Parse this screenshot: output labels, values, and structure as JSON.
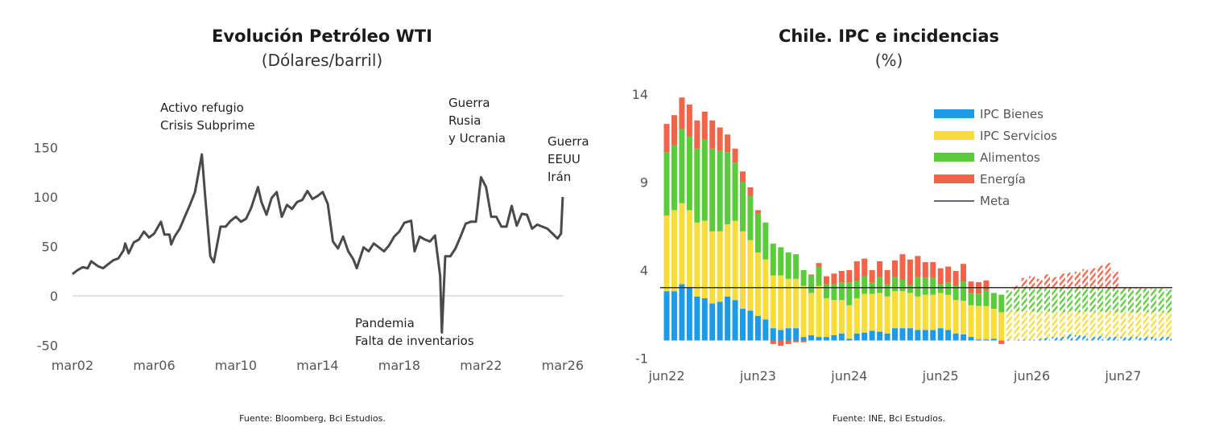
{
  "chart_data": [
    {
      "type": "line",
      "title": "Evolución Petróleo WTI",
      "subtitle": "(Dólares/barril)",
      "source": "Fuente: Bloomberg, Bci Estudios.",
      "ylim": [
        -50,
        150
      ],
      "yticks": [
        "150",
        "100",
        "50",
        "0",
        "-50"
      ],
      "ytick_values": [
        150,
        100,
        50,
        0,
        -50
      ],
      "xticks": [
        "mar02",
        "mar06",
        "mar10",
        "mar14",
        "mar18",
        "mar22",
        "mar26"
      ],
      "xtick_values": [
        "2002-03",
        "2006-03",
        "2010-03",
        "2014-03",
        "2018-03",
        "2022-03",
        "2026-03"
      ],
      "line_color": "#4a4a4a",
      "annotations": [
        {
          "lines": [
            "Activo refugio",
            "Crisis Subprime"
          ]
        },
        {
          "lines": [
            "Guerra",
            "Rusia",
            "y Ucrania"
          ]
        },
        {
          "lines": [
            "Guerra",
            "EEUU",
            "Irán"
          ]
        },
        {
          "lines": [
            "Pandemia",
            "Falta de inventarios"
          ]
        }
      ],
      "x": [
        "2002-03",
        "2002-06",
        "2002-09",
        "2002-12",
        "2003-02",
        "2003-06",
        "2003-09",
        "2003-12",
        "2004-03",
        "2004-06",
        "2004-09",
        "2004-10",
        "2004-12",
        "2005-03",
        "2005-06",
        "2005-09",
        "2005-12",
        "2006-03",
        "2006-07",
        "2006-09",
        "2006-12",
        "2007-01",
        "2007-03",
        "2007-06",
        "2007-09",
        "2007-12",
        "2008-03",
        "2008-07",
        "2008-09",
        "2008-12",
        "2009-02",
        "2009-06",
        "2009-09",
        "2009-12",
        "2010-03",
        "2010-06",
        "2010-09",
        "2010-12",
        "2011-04",
        "2011-06",
        "2011-09",
        "2011-12",
        "2012-03",
        "2012-06",
        "2012-09",
        "2012-12",
        "2013-03",
        "2013-06",
        "2013-09",
        "2013-12",
        "2014-03",
        "2014-06",
        "2014-09",
        "2014-12",
        "2015-03",
        "2015-06",
        "2015-09",
        "2015-12",
        "2016-02",
        "2016-06",
        "2016-09",
        "2016-12",
        "2017-03",
        "2017-06",
        "2017-09",
        "2017-12",
        "2018-03",
        "2018-06",
        "2018-10",
        "2018-12",
        "2019-03",
        "2019-06",
        "2019-09",
        "2019-12",
        "2020-03",
        "2020-04",
        "2020-06",
        "2020-09",
        "2020-12",
        "2021-03",
        "2021-06",
        "2021-09",
        "2021-12",
        "2022-03",
        "2022-06",
        "2022-09",
        "2022-12",
        "2023-03",
        "2023-06",
        "2023-09",
        "2023-12",
        "2024-03",
        "2024-06",
        "2024-09",
        "2024-12",
        "2025-03",
        "2025-06",
        "2025-09",
        "2025-12",
        "2026-02",
        "2026-03"
      ],
      "y": [
        22,
        26,
        29,
        28,
        35,
        30,
        28,
        32,
        36,
        38,
        46,
        53,
        43,
        54,
        57,
        65,
        59,
        63,
        75,
        62,
        62,
        52,
        60,
        68,
        80,
        92,
        105,
        143,
        100,
        40,
        34,
        70,
        70,
        76,
        80,
        75,
        78,
        89,
        110,
        95,
        82,
        99,
        105,
        80,
        92,
        88,
        95,
        97,
        106,
        98,
        101,
        105,
        93,
        55,
        48,
        60,
        45,
        37,
        28,
        49,
        45,
        53,
        49,
        45,
        51,
        60,
        65,
        74,
        76,
        45,
        60,
        57,
        55,
        61,
        20,
        -37,
        40,
        40,
        48,
        60,
        73,
        75,
        75,
        120,
        110,
        80,
        80,
        70,
        70,
        91,
        71,
        83,
        82,
        68,
        72,
        70,
        68,
        63,
        58,
        63,
        100
      ]
    },
    {
      "type": "bar",
      "stacked": true,
      "title": "Chile. IPC e incidencias",
      "subtitle": "(%)",
      "source": "Fuente: INE, Bci Estudios.",
      "ylim": [
        -1,
        14
      ],
      "yticks": [
        "14",
        "9",
        "4",
        "-1"
      ],
      "ytick_values": [
        14,
        9,
        4,
        -1
      ],
      "xticks": [
        "jun22",
        "jun23",
        "jun24",
        "jun25",
        "jun26",
        "jun27"
      ],
      "xtick_values": [
        "2022-06",
        "2023-06",
        "2024-06",
        "2025-06",
        "2026-06",
        "2027-06"
      ],
      "legend_position": "top-right",
      "forecast_from": "2026-03",
      "forecast_style": "hatched",
      "categories": [
        "2022-06",
        "2022-07",
        "2022-08",
        "2022-09",
        "2022-10",
        "2022-11",
        "2022-12",
        "2023-01",
        "2023-02",
        "2023-03",
        "2023-04",
        "2023-05",
        "2023-06",
        "2023-07",
        "2023-08",
        "2023-09",
        "2023-10",
        "2023-11",
        "2023-12",
        "2024-01",
        "2024-02",
        "2024-03",
        "2024-04",
        "2024-05",
        "2024-06",
        "2024-07",
        "2024-08",
        "2024-09",
        "2024-10",
        "2024-11",
        "2024-12",
        "2025-01",
        "2025-02",
        "2025-03",
        "2025-04",
        "2025-05",
        "2025-06",
        "2025-07",
        "2025-08",
        "2025-09",
        "2025-10",
        "2025-11",
        "2025-12",
        "2026-01",
        "2026-02",
        "2026-03",
        "2026-04",
        "2026-05",
        "2026-06",
        "2026-07",
        "2026-08",
        "2026-09",
        "2026-10",
        "2026-11",
        "2026-12",
        "2027-01",
        "2027-02",
        "2027-03",
        "2027-04",
        "2027-05",
        "2027-06",
        "2027-07",
        "2027-08",
        "2027-09",
        "2027-10",
        "2027-11",
        "2027-12"
      ],
      "series": [
        {
          "name": "IPC Bienes",
          "color": "#1e9be8",
          "values": [
            2.8,
            2.8,
            3.2,
            3.0,
            2.5,
            2.4,
            2.1,
            2.2,
            2.5,
            2.3,
            1.8,
            1.7,
            1.4,
            1.2,
            0.7,
            0.6,
            0.7,
            0.7,
            0.2,
            0.3,
            0.2,
            0.2,
            0.3,
            0.4,
            0.1,
            0.4,
            0.45,
            0.55,
            0.5,
            0.4,
            0.7,
            0.7,
            0.7,
            0.6,
            0.6,
            0.6,
            0.7,
            0.6,
            0.4,
            0.35,
            0.2,
            0.06,
            0.06,
            0.1,
            0.0,
            0.05,
            0.05,
            0.05,
            0.05,
            0.1,
            0.15,
            0.2,
            0.2,
            0.35,
            0.3,
            0.25,
            0.2,
            0.25,
            0.2,
            0.2,
            0.2,
            0.2,
            0.2,
            0.2,
            0.2,
            0.2,
            0.2
          ]
        },
        {
          "name": "IPC Servicios",
          "color": "#f7dc3a",
          "values": [
            4.3,
            4.6,
            4.6,
            4.4,
            4.2,
            4.4,
            4.1,
            4.0,
            4.1,
            4.5,
            4.4,
            4.0,
            3.6,
            3.4,
            3.0,
            3.1,
            2.8,
            2.8,
            2.9,
            2.4,
            2.9,
            2.2,
            2.0,
            1.9,
            1.9,
            2.0,
            2.2,
            2.1,
            2.2,
            2.1,
            2.1,
            2.1,
            2.0,
            1.9,
            2.0,
            2.0,
            2.0,
            2.0,
            1.9,
            1.9,
            1.8,
            1.9,
            1.9,
            1.7,
            1.6,
            1.6,
            1.6,
            1.6,
            1.6,
            1.5,
            1.5,
            1.4,
            1.4,
            1.3,
            1.3,
            1.4,
            1.4,
            1.4,
            1.4,
            1.4,
            1.4,
            1.4,
            1.4,
            1.4,
            1.4,
            1.4,
            1.4
          ]
        },
        {
          "name": "Alimentos",
          "color": "#5acb3a",
          "values": [
            3.6,
            3.7,
            4.2,
            4.2,
            4.2,
            4.6,
            4.7,
            4.6,
            4.1,
            3.3,
            2.8,
            2.5,
            2.2,
            2.1,
            1.8,
            1.6,
            1.5,
            1.4,
            0.9,
            1.0,
            1.1,
            0.8,
            0.9,
            1.0,
            1.3,
            1.0,
            1.0,
            0.65,
            0.9,
            0.7,
            0.8,
            0.65,
            0.45,
            1.1,
            0.95,
            0.95,
            0.5,
            0.7,
            0.8,
            1.1,
            0.7,
            0.7,
            0.9,
            0.9,
            1.0,
            1.2,
            1.25,
            1.3,
            1.3,
            1.3,
            1.3,
            1.3,
            1.3,
            1.3,
            1.3,
            1.3,
            1.3,
            1.3,
            1.3,
            1.3,
            1.3,
            1.3,
            1.3,
            1.3,
            1.3,
            1.3,
            1.3
          ]
        },
        {
          "name": "Energía",
          "color": "#f2644a",
          "values": [
            1.6,
            1.7,
            1.8,
            1.8,
            1.6,
            1.6,
            1.6,
            1.3,
            1.0,
            0.8,
            0.6,
            0.5,
            0.2,
            0.0,
            -0.2,
            -0.3,
            -0.2,
            -0.1,
            -0.1,
            0.05,
            0.2,
            0.45,
            0.6,
            0.65,
            0.7,
            1.1,
            1.0,
            0.7,
            0.9,
            0.8,
            0.95,
            1.45,
            1.45,
            1.2,
            0.9,
            0.9,
            0.9,
            0.9,
            0.85,
            1.0,
            0.65,
            0.65,
            0.55,
            0.0,
            -0.2,
            0.0,
            0.2,
            0.6,
            0.7,
            0.6,
            0.8,
            0.7,
            0.9,
            0.9,
            1.0,
            1.1,
            1.2,
            1.3,
            1.5,
            1.0,
            0.1,
            0.1,
            0.1,
            0.05,
            0.05,
            0.05,
            0.0
          ]
        }
      ],
      "reference_line": {
        "name": "Meta",
        "value": 3,
        "color": "#333333"
      }
    }
  ]
}
